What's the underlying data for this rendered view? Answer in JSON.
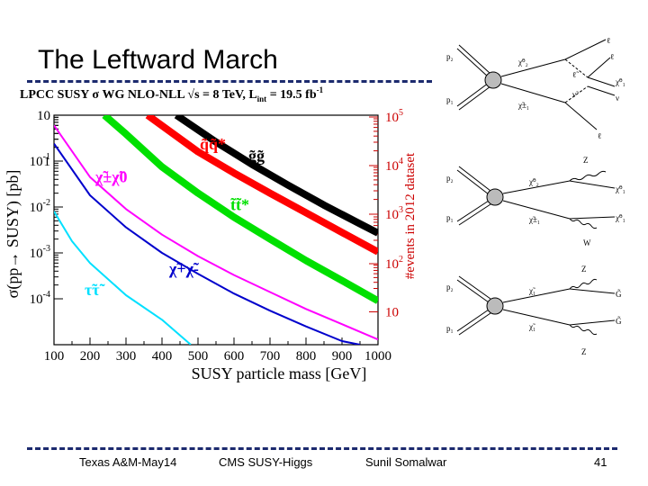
{
  "slide": {
    "title": "The Leftward March",
    "footer": {
      "left": "Texas A&M-May14",
      "center": "CMS SUSY-Higgs",
      "right": "Sunil Somalwar",
      "page": "41"
    }
  },
  "chart_data": {
    "type": "line",
    "title": "LPCC SUSY σ WG   NLO-NLL  √s = 8 TeV, L",
    "title_sub": "int",
    "title_tail": " = 19.5 fb",
    "title_sup": "-1",
    "xlabel": "SUSY particle mass [GeV]",
    "ylabel": "σ(pp→ SUSY) [pb]",
    "y2label": "#events in 2012 dataset",
    "xlim": [
      100,
      1000
    ],
    "ylim": [
      0.0001,
      10
    ],
    "yscale": "log",
    "x_ticks": [
      "100",
      "200",
      "300",
      "400",
      "500",
      "600",
      "700",
      "800",
      "900",
      "1000"
    ],
    "y_ticks": [
      {
        "base": "10",
        "exp": "-4"
      },
      {
        "base": "10",
        "exp": "-3"
      },
      {
        "base": "10",
        "exp": "-2"
      },
      {
        "base": "10",
        "exp": "-1"
      },
      {
        "base": "1",
        "exp": ""
      },
      {
        "base": "10",
        "exp": ""
      }
    ],
    "y2_ticks": [
      {
        "base": "10",
        "exp": ""
      },
      {
        "base": "10",
        "exp": "2"
      },
      {
        "base": "10",
        "exp": "3"
      },
      {
        "base": "10",
        "exp": "4"
      },
      {
        "base": "10",
        "exp": "5"
      }
    ],
    "series": [
      {
        "name": "gg",
        "label": "g̃g̃",
        "color": "#000000",
        "width": 8,
        "x": [
          440,
          550,
          650,
          750,
          850,
          950,
          1000
        ],
        "y": [
          10,
          2.6,
          0.85,
          0.3,
          0.11,
          0.043,
          0.027
        ]
      },
      {
        "name": "qq",
        "label": "q̃q̃*",
        "color": "#ff0000",
        "width": 8,
        "x": [
          360,
          500,
          600,
          700,
          800,
          900,
          1000
        ],
        "y": [
          10,
          1.6,
          0.55,
          0.2,
          0.075,
          0.028,
          0.0105
        ]
      },
      {
        "name": "tt",
        "label": "t̃t̃*",
        "color": "#00e000",
        "width": 8,
        "x": [
          240,
          300,
          400,
          500,
          600,
          700,
          800,
          900,
          1000
        ],
        "y": [
          10,
          3.9,
          0.75,
          0.2,
          0.06,
          0.02,
          0.0068,
          0.0025,
          0.0009
        ]
      },
      {
        "name": "chi_pm_chi_0",
        "label": "χ̃±χ̃0",
        "color": "#ff00ff",
        "width": 2,
        "x": [
          100,
          200,
          300,
          400,
          500,
          600,
          700,
          800,
          900,
          1000
        ],
        "y": [
          6,
          0.45,
          0.09,
          0.025,
          0.0085,
          0.0033,
          0.0014,
          0.0006,
          0.00028,
          0.00013
        ]
      },
      {
        "name": "chi_p_chi_m",
        "label": "χ̃+χ̃-",
        "color": "#0000cc",
        "width": 2,
        "x": [
          100,
          200,
          300,
          400,
          500,
          600,
          700,
          800,
          900,
          950
        ],
        "y": [
          2.4,
          0.18,
          0.036,
          0.01,
          0.0035,
          0.0013,
          0.00055,
          0.00025,
          0.00012,
          0.0001
        ]
      },
      {
        "name": "tau_tau",
        "label": "τ̃τ̃",
        "color": "#00e0ff",
        "width": 2,
        "x": [
          100,
          150,
          200,
          300,
          400,
          480
        ],
        "y": [
          0.08,
          0.018,
          0.006,
          0.0012,
          0.00035,
          0.0001
        ]
      }
    ]
  },
  "feynman": {
    "diagram1": {
      "in_top": "p₂",
      "in_bottom": "p₁",
      "out_top": "χ̃⁰₂",
      "out_bottom": "χ̃±₁",
      "leptons": [
        "ℓ",
        "ℓ",
        "ℓ"
      ],
      "slepton": "ℓ̃",
      "sneutrino": "ν̃",
      "lsp": "χ̃⁰₁",
      "neutrino": "ν"
    },
    "diagram2": {
      "in_top": "p₂",
      "in_bottom": "p₁",
      "out_top": "χ̃⁰₂",
      "out_bottom": "χ̃±₁",
      "boson_top": "Z",
      "boson_bottom": "W",
      "lsp_top": "χ̃⁰₁",
      "lsp_bottom": "χ̃⁰₁"
    },
    "diagram3": {
      "in_top": "p₂",
      "in_bottom": "p₁",
      "out_top": "χ̃₁",
      "out_bottom": "χ̃₁",
      "boson_top": "Z",
      "boson_bottom": "Z",
      "gravitino_top": "G̃",
      "gravitino_bottom": "G̃"
    }
  }
}
